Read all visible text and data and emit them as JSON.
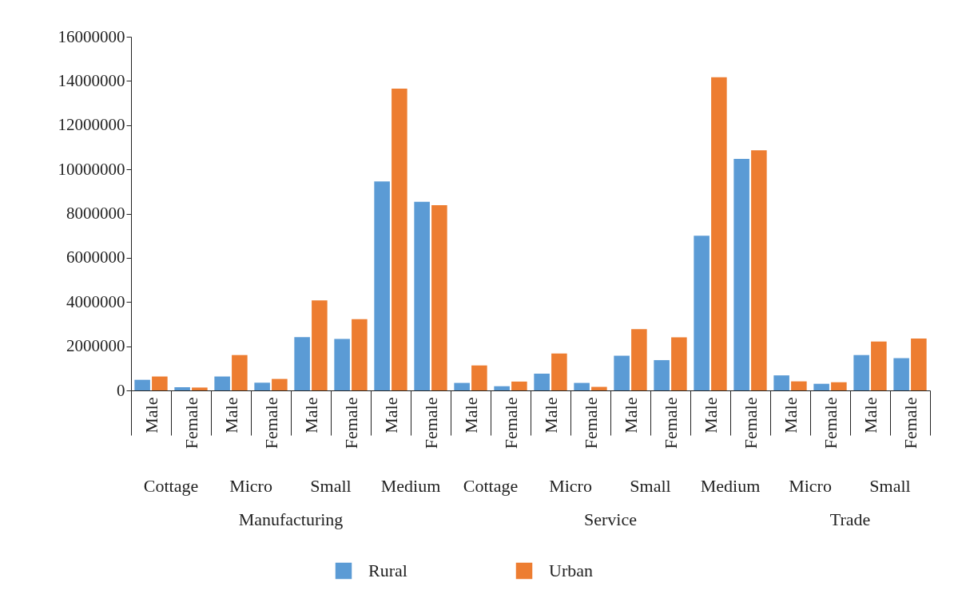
{
  "chart_data": {
    "type": "bar",
    "categories": [
      "Male",
      "Female",
      "Male",
      "Female",
      "Male",
      "Female",
      "Male",
      "Female",
      "Male",
      "Female",
      "Male",
      "Female",
      "Male",
      "Female",
      "Male",
      "Female",
      "Male",
      "Female",
      "Male",
      "Female"
    ],
    "series": [
      {
        "name": "Rural",
        "color": "#5b9bd5",
        "values": [
          480000,
          140000,
          630000,
          350000,
          2410000,
          2330000,
          9450000,
          8530000,
          340000,
          190000,
          760000,
          340000,
          1570000,
          1370000,
          7000000,
          10470000,
          680000,
          300000,
          1600000,
          1460000
        ]
      },
      {
        "name": "Urban",
        "color": "#ed7d31",
        "values": [
          630000,
          130000,
          1600000,
          520000,
          4070000,
          3220000,
          13650000,
          8380000,
          1130000,
          400000,
          1670000,
          160000,
          2770000,
          2400000,
          14170000,
          10860000,
          410000,
          370000,
          2210000,
          2350000
        ]
      }
    ],
    "ylim": [
      0,
      16000000
    ],
    "yticks": [
      0,
      2000000,
      4000000,
      6000000,
      8000000,
      10000000,
      12000000,
      14000000,
      16000000
    ],
    "annotations": [
      "Cottage",
      "Micro",
      "Small",
      "Medium",
      "Cottage",
      "Micro",
      "Small",
      "Medium",
      "Micro",
      "Small",
      "Manufacturing",
      "Service",
      "Trade"
    ],
    "grid": false,
    "legend": "bottom"
  }
}
